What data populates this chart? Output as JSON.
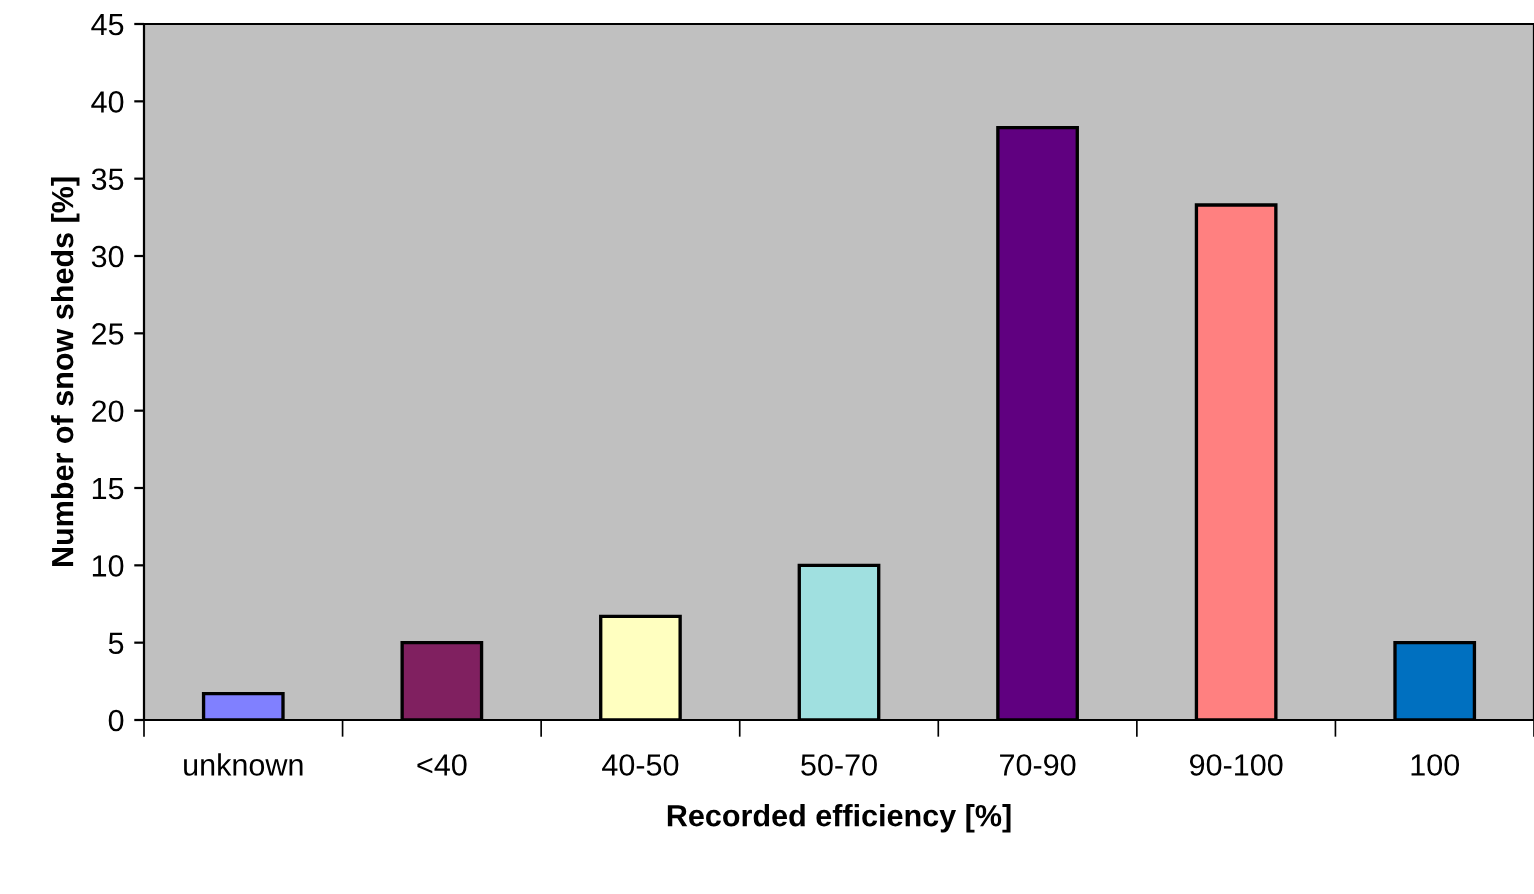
{
  "chart_data": {
    "type": "bar",
    "xlabel": "Recorded efficiency [%]",
    "ylabel": "Number of snow sheds [%]",
    "categories": [
      "unknown",
      "<40",
      "40-50",
      "50-70",
      "70-90",
      "90-100",
      "100"
    ],
    "values": [
      1.7,
      5,
      6.7,
      10,
      38.3,
      33.3,
      5
    ],
    "colors": [
      "#8080ff",
      "#802060",
      "#ffffc0",
      "#a0e0e0",
      "#600080",
      "#ff8080",
      "#0070c0"
    ],
    "ylim": [
      0,
      45
    ],
    "yticks": [
      0,
      5,
      10,
      15,
      20,
      25,
      30,
      35,
      40,
      45
    ],
    "grid": false,
    "legend": false
  }
}
